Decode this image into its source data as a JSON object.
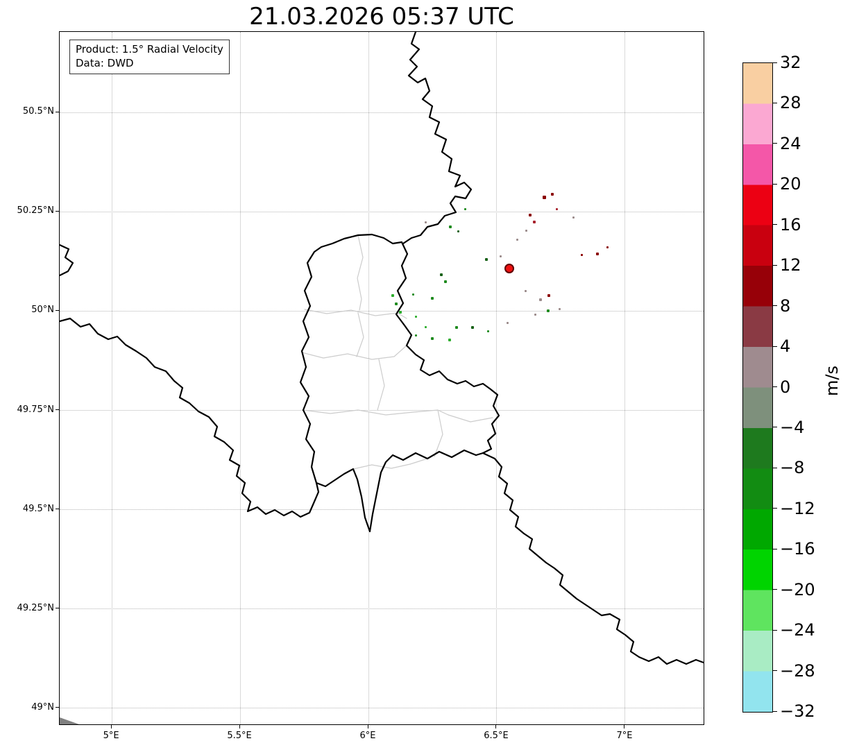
{
  "title": "21.03.2026 05:37 UTC",
  "info_box": {
    "product": "Product: 1.5° Radial Velocity",
    "data_source": "Data: DWD"
  },
  "axes": {
    "x_tick_labels": [
      "5°E",
      "5.5°E",
      "6°E",
      "6.5°E",
      "7°E"
    ],
    "x_tick_lons": [
      5,
      5.5,
      6,
      6.5,
      7
    ],
    "y_tick_labels": [
      "50.5°N",
      "50.25°N",
      "50°N",
      "49.75°N",
      "49.5°N",
      "49.25°N",
      "49°N"
    ],
    "y_tick_lats": [
      50.5,
      50.25,
      50,
      49.75,
      49.5,
      49.25,
      49
    ],
    "extent": {
      "lon_min": 4.797,
      "lon_max": 7.311,
      "lat_min": 48.956,
      "lat_max": 50.703
    },
    "grid_style": "dotted",
    "grid_color": "#b5b5b5"
  },
  "colorbar": {
    "unit_label": "m/s",
    "vmin": -32,
    "vmax": 32,
    "tick_labels": [
      "32",
      "28",
      "24",
      "20",
      "16",
      "12",
      "8",
      "4",
      "0",
      "−4",
      "−8",
      "−12",
      "−16",
      "−20",
      "−24",
      "−28",
      "−32"
    ],
    "band_colors_top_to_bottom": [
      "#f9cfa2",
      "#fba8d2",
      "#f457a8",
      "#ec0013",
      "#c9000f",
      "#970008",
      "#8a3a44",
      "#9f8b8f",
      "#7e907c",
      "#1e7a1e",
      "#128c12",
      "#00a800",
      "#00d400",
      "#5fe45f",
      "#a9ecc4",
      "#92e4ee"
    ]
  },
  "radar_site": {
    "lon": 6.549,
    "lat": 50.108,
    "marker_color": "#ee1111",
    "marker_edge_color": "#600000"
  },
  "radar_echoes": [
    {
      "lon": 6.684,
      "lat": 50.286,
      "c": "#8b0000",
      "s": 5
    },
    {
      "lon": 6.716,
      "lat": 50.294,
      "c": "#8b0000",
      "s": 4
    },
    {
      "lon": 6.735,
      "lat": 50.256,
      "c": "#a8232d",
      "s": 3
    },
    {
      "lon": 6.63,
      "lat": 50.242,
      "c": "#8b0000",
      "s": 4
    },
    {
      "lon": 6.646,
      "lat": 50.224,
      "c": "#a8232d",
      "s": 4
    },
    {
      "lon": 6.616,
      "lat": 50.203,
      "c": "#9b8b8b",
      "s": 3
    },
    {
      "lon": 6.892,
      "lat": 50.144,
      "c": "#8b0000",
      "s": 4
    },
    {
      "lon": 6.93,
      "lat": 50.16,
      "c": "#8b0000",
      "s": 3
    },
    {
      "lon": 6.703,
      "lat": 50.04,
      "c": "#8b0000",
      "s": 4
    },
    {
      "lon": 6.67,
      "lat": 50.029,
      "c": "#9b8b8b",
      "s": 4
    },
    {
      "lon": 6.514,
      "lat": 50.137,
      "c": "#9b8b8b",
      "s": 3
    },
    {
      "lon": 6.581,
      "lat": 50.179,
      "c": "#9b8b8b",
      "s": 3
    },
    {
      "lon": 6.8,
      "lat": 50.235,
      "c": "#9b8b8b",
      "s": 3
    },
    {
      "lon": 6.832,
      "lat": 50.141,
      "c": "#8b0000",
      "s": 3
    },
    {
      "lon": 6.459,
      "lat": 50.13,
      "c": "#176117",
      "s": 4
    },
    {
      "lon": 6.611,
      "lat": 50.05,
      "c": "#9b8b8b",
      "s": 3
    },
    {
      "lon": 6.746,
      "lat": 50.005,
      "c": "#9b8b8b",
      "s": 3
    },
    {
      "lon": 6.319,
      "lat": 50.212,
      "c": "#1f8b1f",
      "s": 4
    },
    {
      "lon": 6.351,
      "lat": 50.2,
      "c": "#176117",
      "s": 3
    },
    {
      "lon": 6.222,
      "lat": 50.224,
      "c": "#9b8b8b",
      "s": 3
    },
    {
      "lon": 6.378,
      "lat": 50.256,
      "c": "#1f8b1f",
      "s": 3
    },
    {
      "lon": 6.095,
      "lat": 50.04,
      "c": "#2fae2f",
      "s": 4
    },
    {
      "lon": 6.108,
      "lat": 50.019,
      "c": "#1f8b1f",
      "s": 4
    },
    {
      "lon": 6.124,
      "lat": 49.998,
      "c": "#2fae2f",
      "s": 4
    },
    {
      "lon": 6.284,
      "lat": 50.092,
      "c": "#176117",
      "s": 4
    },
    {
      "lon": 6.3,
      "lat": 50.074,
      "c": "#1f8b1f",
      "s": 4
    },
    {
      "lon": 6.249,
      "lat": 50.033,
      "c": "#1f8b1f",
      "s": 4
    },
    {
      "lon": 6.343,
      "lat": 49.959,
      "c": "#1f8b1f",
      "s": 4
    },
    {
      "lon": 6.316,
      "lat": 49.928,
      "c": "#2fae2f",
      "s": 4
    },
    {
      "lon": 6.249,
      "lat": 49.931,
      "c": "#1f8b1f",
      "s": 4
    },
    {
      "lon": 6.405,
      "lat": 49.959,
      "c": "#176117",
      "s": 4
    },
    {
      "lon": 6.465,
      "lat": 49.949,
      "c": "#1f8b1f",
      "s": 3
    },
    {
      "lon": 6.543,
      "lat": 49.97,
      "c": "#9b8b8b",
      "s": 3
    },
    {
      "lon": 6.7,
      "lat": 50.001,
      "c": "#1f8b1f",
      "s": 4
    },
    {
      "lon": 6.222,
      "lat": 49.959,
      "c": "#2fae2f",
      "s": 3
    },
    {
      "lon": 6.184,
      "lat": 49.938,
      "c": "#1f8b1f",
      "s": 3
    },
    {
      "lon": 6.649,
      "lat": 49.991,
      "c": "#9b8b8b",
      "s": 3
    },
    {
      "lon": 6.175,
      "lat": 50.042,
      "c": "#1f8b1f",
      "s": 3
    },
    {
      "lon": 6.186,
      "lat": 49.985,
      "c": "#2fae2f",
      "s": 3
    }
  ]
}
